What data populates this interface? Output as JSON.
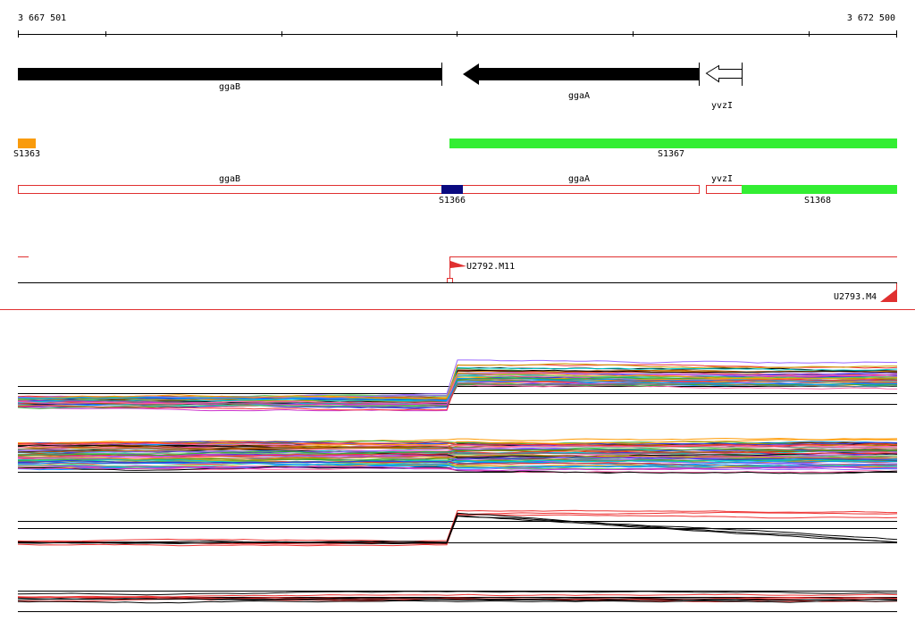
{
  "ruler": {
    "start": "3 667 501",
    "end": "3 672 500"
  },
  "genes": [
    {
      "label": "ggaB"
    },
    {
      "label": "ggaA"
    },
    {
      "label": "yvzI"
    }
  ],
  "segments": [
    {
      "label": "S1363"
    },
    {
      "label": "S1367"
    },
    {
      "label": "S1366"
    },
    {
      "label": "S1368"
    }
  ],
  "gene_row": [
    {
      "label": "ggaB"
    },
    {
      "label": "ggaA"
    },
    {
      "label": "yvzI"
    }
  ],
  "features": [
    {
      "label": "U2792.M11"
    },
    {
      "label": "U2793.M4"
    }
  ]
}
